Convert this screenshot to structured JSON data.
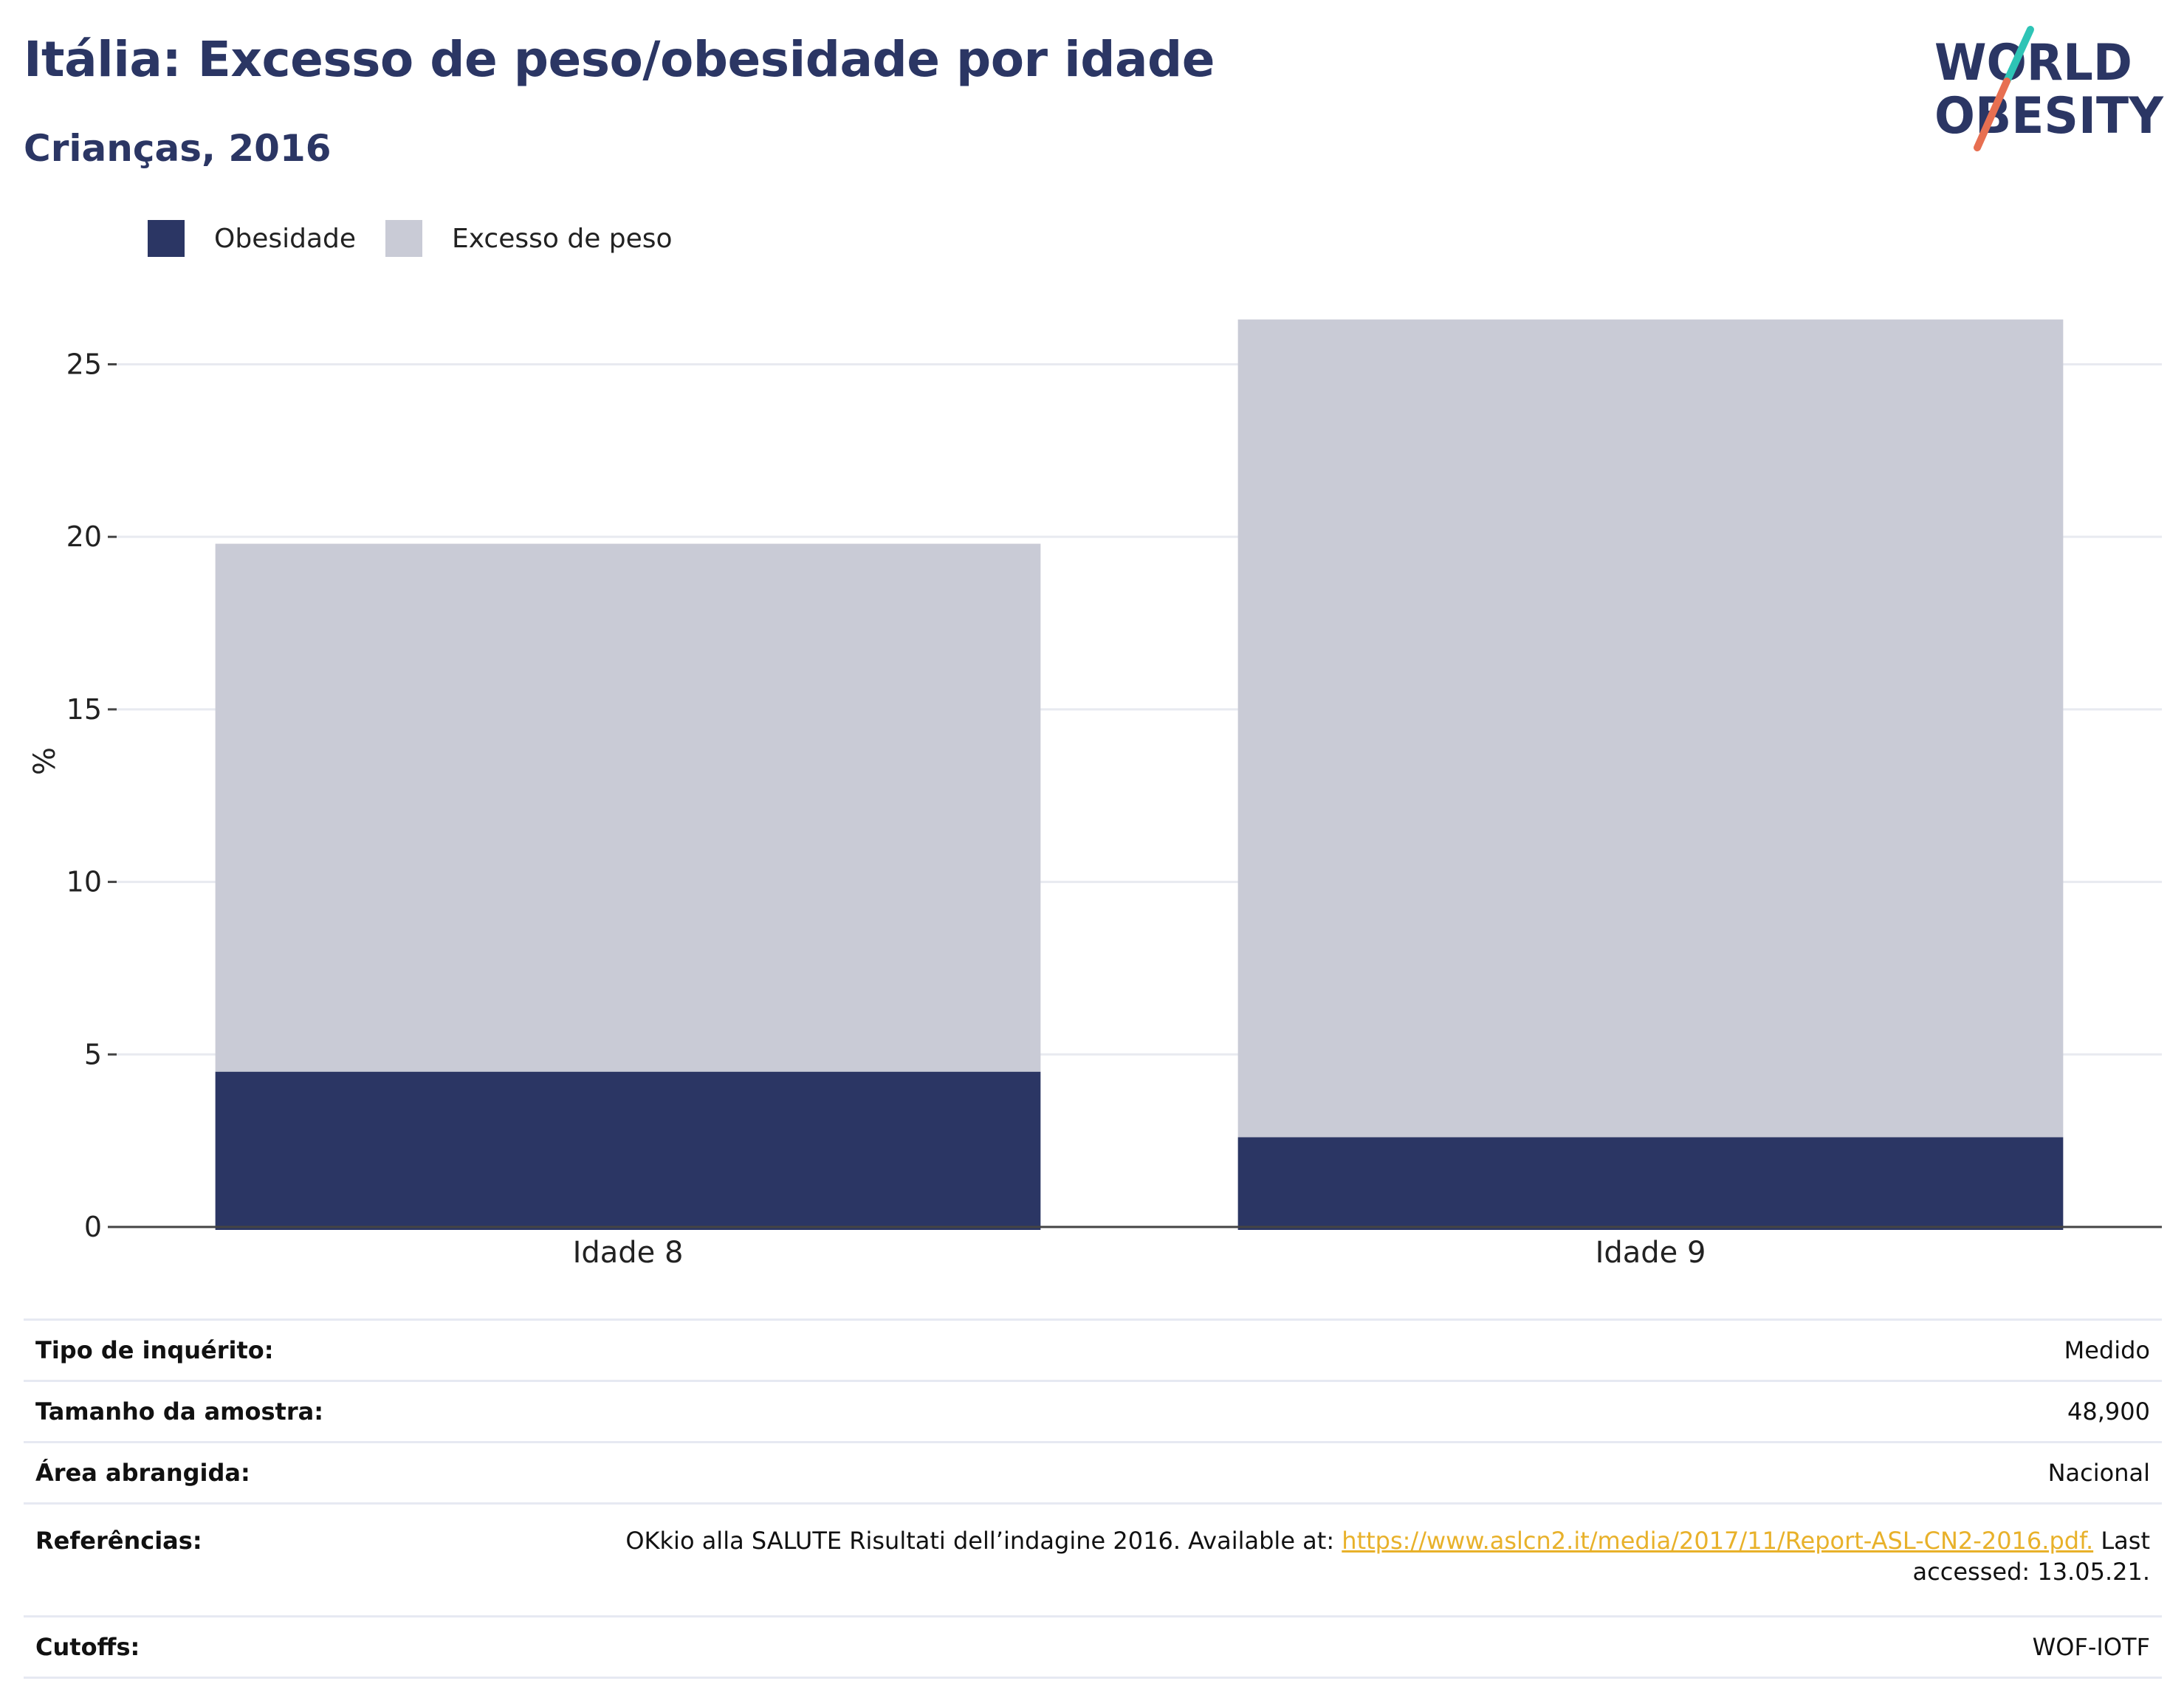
{
  "header": {
    "title": "Itália: Excesso de peso/obesidade por idade",
    "subtitle": "Crianças, 2016"
  },
  "logo": {
    "line1": "WORLD",
    "line2": "OBESITY",
    "colors": {
      "text": "#2b3664",
      "slash_top": "#2ec4b6",
      "slash_bottom": "#e76f51"
    }
  },
  "legend": [
    {
      "label": "Obesidade",
      "color": "#2b3664"
    },
    {
      "label": "Excesso de peso",
      "color": "#c9cbd6"
    }
  ],
  "chart_data": {
    "type": "bar",
    "stacked": true,
    "categories": [
      "Idade 8",
      "Idade 9"
    ],
    "series": [
      {
        "name": "Obesidade",
        "color": "#2b3664",
        "values": [
          4.5,
          2.6
        ]
      },
      {
        "name": "Excesso de peso",
        "color": "#c9cbd6",
        "values": [
          15.3,
          23.7
        ]
      }
    ],
    "ylabel": "%",
    "ylim": [
      0,
      27
    ],
    "yticks": [
      0,
      5,
      10,
      15,
      20,
      25
    ],
    "grid": true,
    "legend_position": "top-left"
  },
  "info": {
    "survey_type": {
      "label": "Tipo de inquérito:",
      "value": "Medido"
    },
    "sample_size": {
      "label": "Tamanho da amostra:",
      "value": "48,900"
    },
    "area": {
      "label": "Área abrangida:",
      "value": "Nacional"
    },
    "references": {
      "label": "Referências:",
      "text_before": "OKkio alla SALUTE Risultati dell’indagine 2016. Available at: ",
      "link": "https://www.aslcn2.it/media/2017/11/Report-ASL-CN2-2016.pdf.",
      "text_after": " Last accessed: 13.05.21."
    },
    "cutoffs": {
      "label": "Cutoffs:",
      "value": "WOF-IOTF"
    }
  }
}
